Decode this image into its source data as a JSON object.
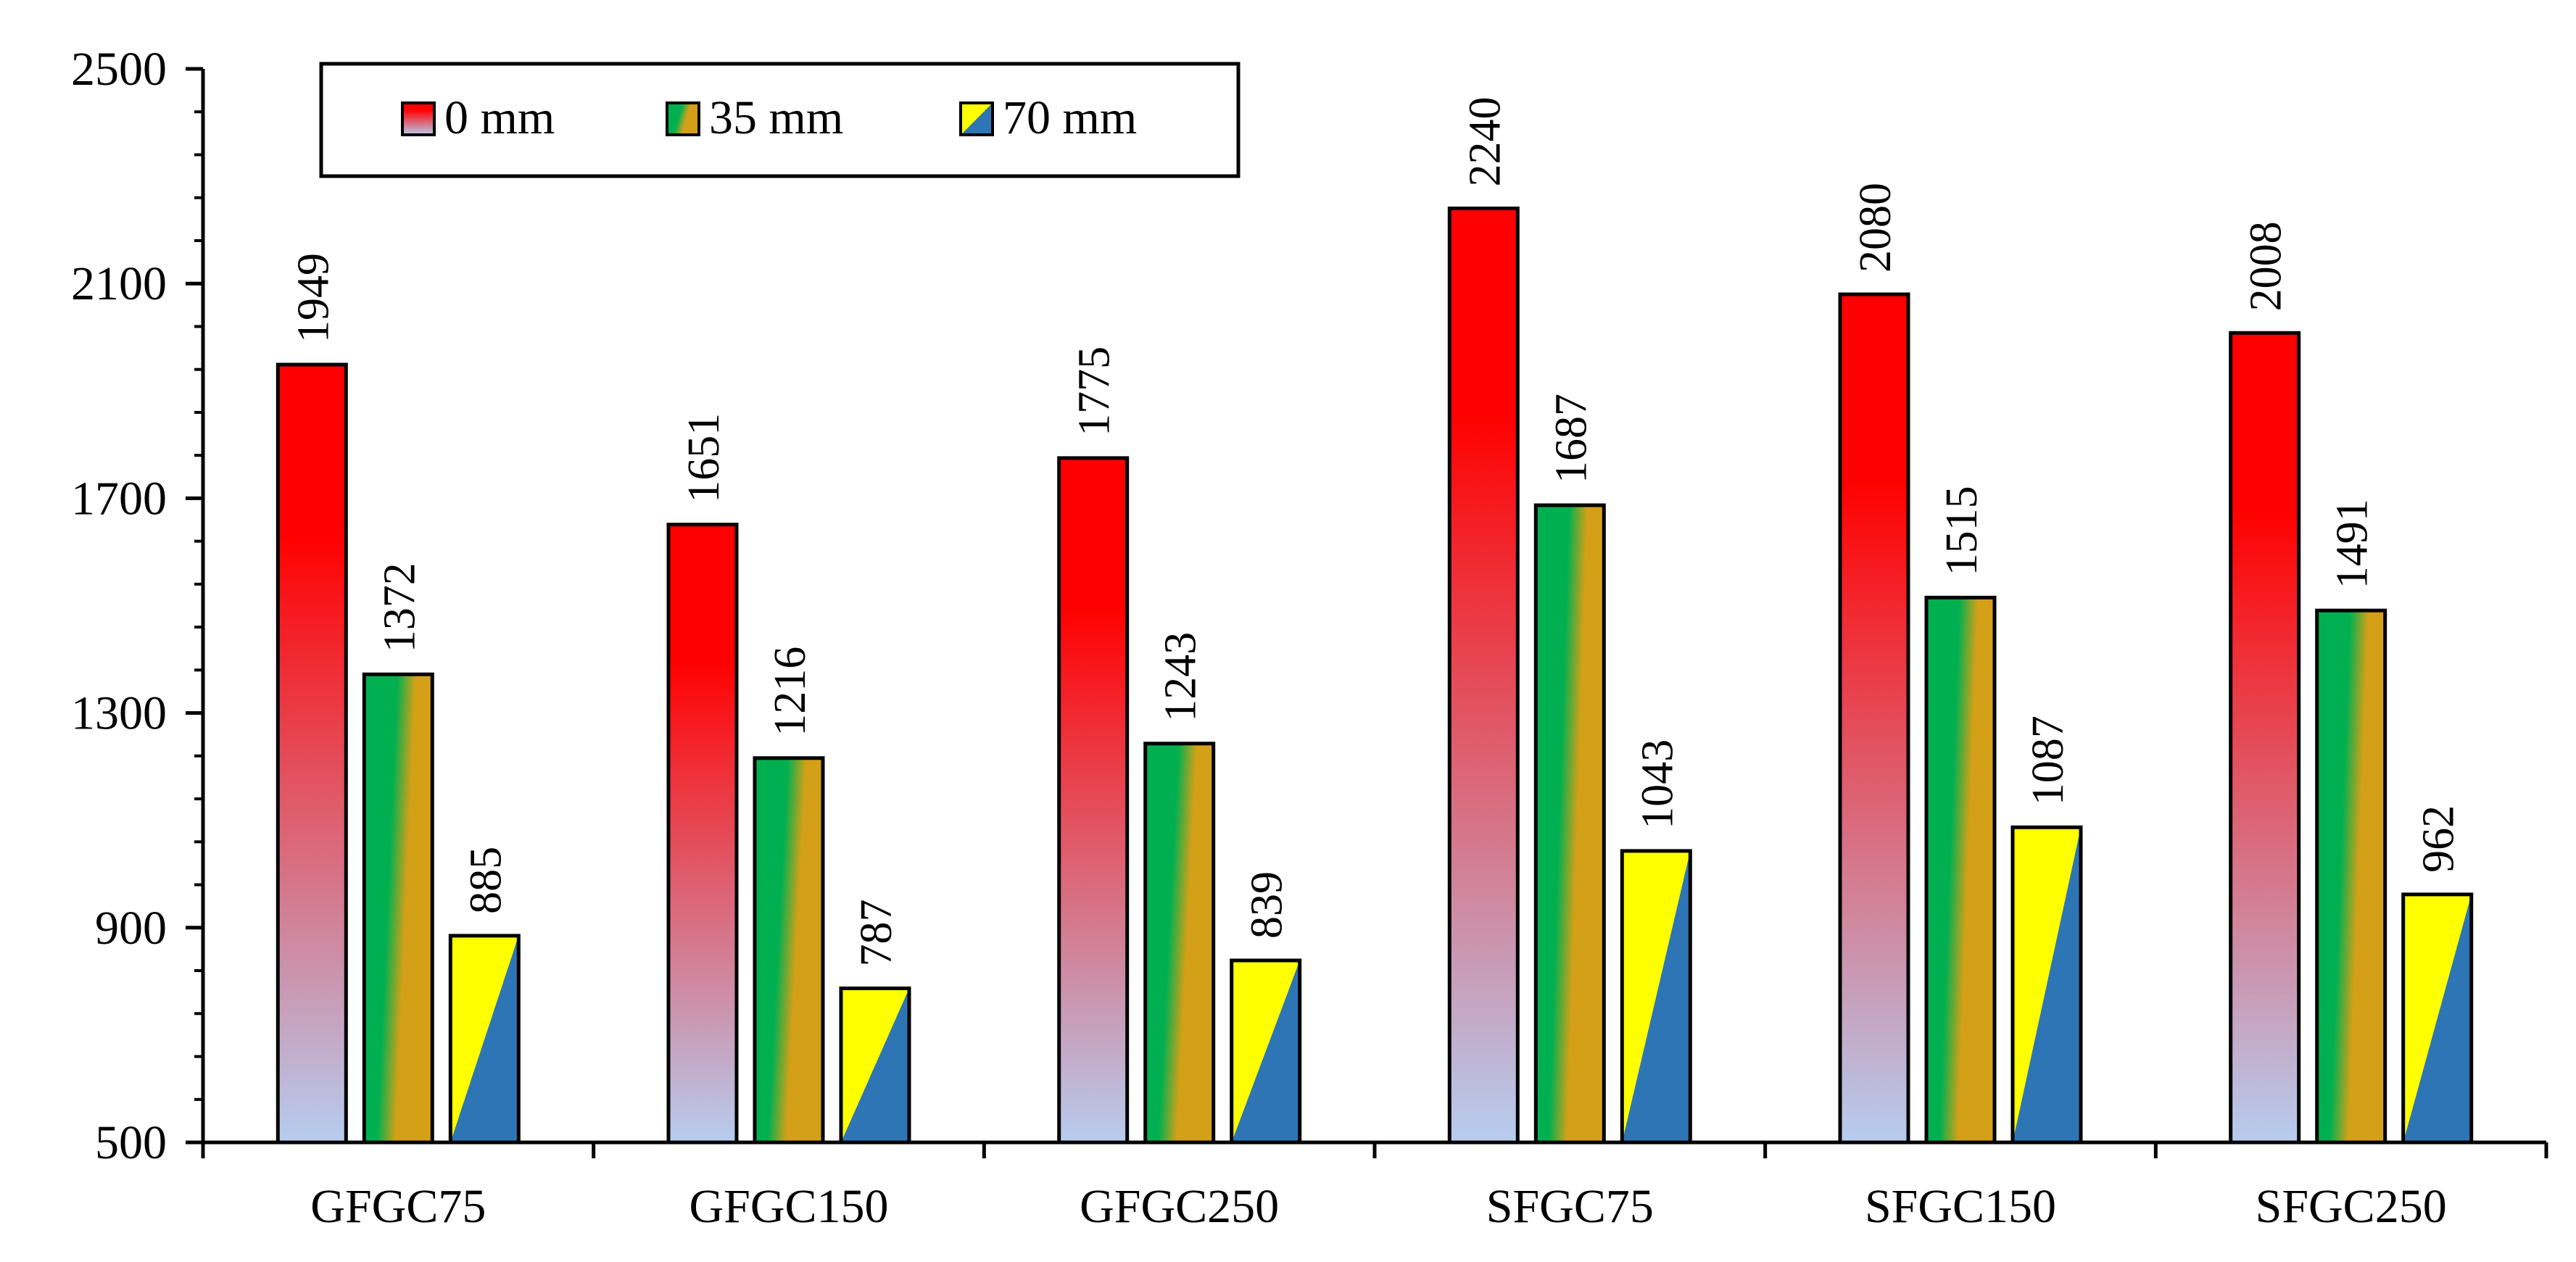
{
  "chart_data": {
    "type": "bar",
    "title": "",
    "xlabel": "",
    "ylabel": "",
    "categories": [
      "GFGC75",
      "GFGC150",
      "GFGC250",
      "SFGC75",
      "SFGC150",
      "SFGC250"
    ],
    "series": [
      {
        "name": "0 mm",
        "values": [
          1949,
          1651,
          1775,
          2240,
          2080,
          2008
        ],
        "colors": [
          "#ff0000",
          "#b7cdf0"
        ],
        "style": "vertical"
      },
      {
        "name": "35 mm",
        "values": [
          1372,
          1216,
          1243,
          1687,
          1515,
          1491
        ],
        "colors": [
          "#00b050",
          "#d4a017"
        ],
        "style": "diagonal-blend"
      },
      {
        "name": "70 mm",
        "values": [
          885,
          787,
          839,
          1043,
          1087,
          962
        ],
        "colors": [
          "#ffff00",
          "#2e75b6"
        ],
        "style": "diagonal-split"
      }
    ],
    "ylim": [
      500,
      2500
    ],
    "yticks": [
      500,
      900,
      1300,
      1700,
      2100,
      2500
    ],
    "yminor_step": 80,
    "grid": false,
    "legend": {
      "position": "top-left",
      "orientation": "horizontal"
    },
    "data_labels": true,
    "data_label_rotation": "vertical"
  }
}
